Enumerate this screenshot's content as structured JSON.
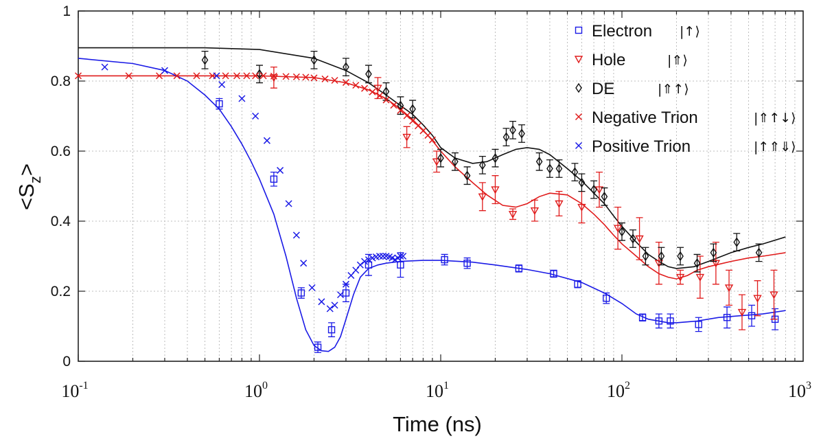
{
  "chart_data": {
    "type": "scatter",
    "xscale": "log",
    "xlim": [
      0.1,
      1000
    ],
    "ylim": [
      0,
      1
    ],
    "xlabel": "Time (ns)",
    "ylabel": {
      "base": "<S",
      "sub": "z",
      "close": ">"
    },
    "yticks": [
      "0",
      "0.2",
      "0.4",
      "0.6",
      "0.8",
      "1"
    ],
    "xticks": [
      {
        "base": "10",
        "exp": "-1"
      },
      {
        "base": "10",
        "exp": "0"
      },
      {
        "base": "10",
        "exp": "1"
      },
      {
        "base": "10",
        "exp": "2"
      },
      {
        "base": "10",
        "exp": "3"
      }
    ],
    "grid": true,
    "legend_position": "top-right",
    "series": [
      {
        "name": "Electron",
        "ket": "|↑⟩",
        "color": "#1a1ae6",
        "marker": "square",
        "x": [
          0.6,
          1.2,
          1.7,
          2.1,
          2.5,
          3.0,
          4.0,
          6.0,
          10.5,
          14.0,
          27.0,
          42.0,
          57.0,
          82.0,
          130.0,
          160.0,
          185.0,
          265.0,
          380.0,
          520.0,
          700.0
        ],
        "y": [
          0.735,
          0.52,
          0.195,
          0.04,
          0.09,
          0.195,
          0.275,
          0.275,
          0.29,
          0.28,
          0.265,
          0.25,
          0.22,
          0.18,
          0.125,
          0.115,
          0.115,
          0.105,
          0.125,
          0.13,
          0.12
        ],
        "err": [
          0.015,
          0.02,
          0.015,
          0.015,
          0.02,
          0.025,
          0.03,
          0.035,
          0.015,
          0.015,
          0.01,
          0.01,
          0.01,
          0.015,
          0.01,
          0.02,
          0.02,
          0.02,
          0.03,
          0.03,
          0.03
        ]
      },
      {
        "name": "Hole",
        "ket": "|⇑⟩",
        "color": "#e01b1b",
        "marker": "triangle-down",
        "x": [
          1.2,
          4.5,
          6.5,
          9.5,
          17.0,
          20.0,
          25.0,
          33.0,
          45.0,
          60.0,
          75.0,
          95.0,
          125.0,
          160.0,
          210.0,
          270.0,
          330.0,
          390.0,
          460.0,
          560.0,
          690.0
        ],
        "y": [
          0.81,
          0.78,
          0.64,
          0.57,
          0.47,
          0.49,
          0.42,
          0.43,
          0.45,
          0.44,
          0.49,
          0.38,
          0.35,
          0.28,
          0.24,
          0.24,
          0.28,
          0.21,
          0.14,
          0.18,
          0.19
        ],
        "err": [
          0.03,
          0.03,
          0.03,
          0.03,
          0.04,
          0.04,
          0.015,
          0.03,
          0.035,
          0.045,
          0.05,
          0.06,
          0.06,
          0.06,
          0.02,
          0.06,
          0.06,
          0.05,
          0.05,
          0.05,
          0.07
        ]
      },
      {
        "name": "DE",
        "ket": "|⇑↑⟩",
        "color": "#111111",
        "marker": "diamond",
        "x": [
          0.5,
          1.0,
          2.0,
          3.0,
          4.0,
          5.0,
          6.0,
          7.0,
          10.0,
          12.0,
          14.0,
          17.0,
          20.0,
          23.0,
          25.0,
          28.0,
          35.0,
          40.0,
          45.0,
          55.0,
          60.0,
          70.0,
          80.0,
          100.0,
          115.0,
          135.0,
          165.0,
          210.0,
          260.0,
          320.0,
          430.0,
          570.0
        ],
        "y": [
          0.86,
          0.82,
          0.86,
          0.84,
          0.82,
          0.77,
          0.73,
          0.72,
          0.58,
          0.57,
          0.53,
          0.56,
          0.58,
          0.64,
          0.66,
          0.65,
          0.57,
          0.55,
          0.55,
          0.54,
          0.51,
          0.49,
          0.47,
          0.37,
          0.35,
          0.3,
          0.3,
          0.3,
          0.28,
          0.31,
          0.34,
          0.31
        ],
        "err": [
          0.025,
          0.025,
          0.025,
          0.025,
          0.025,
          0.025,
          0.025,
          0.025,
          0.025,
          0.025,
          0.025,
          0.025,
          0.025,
          0.025,
          0.025,
          0.025,
          0.025,
          0.025,
          0.025,
          0.025,
          0.025,
          0.025,
          0.025,
          0.025,
          0.025,
          0.025,
          0.025,
          0.025,
          0.025,
          0.025,
          0.025,
          0.025
        ]
      },
      {
        "name": "Negative Trion",
        "ket": "|⇑↑↓⟩",
        "color": "#e01b1b",
        "marker": "x",
        "x": [
          0.1,
          0.19,
          0.28,
          0.35,
          0.45,
          0.55,
          0.65,
          0.75,
          0.85,
          0.95,
          1.05,
          1.2,
          1.4,
          1.6,
          1.8,
          2.0,
          2.3,
          2.6,
          3.0,
          3.4,
          3.8,
          4.2,
          4.6,
          5.0,
          5.5,
          6.0,
          6.5,
          7.0,
          7.5,
          8.0,
          8.5,
          9.0
        ],
        "y": [
          0.815,
          0.815,
          0.815,
          0.815,
          0.815,
          0.815,
          0.815,
          0.815,
          0.815,
          0.815,
          0.815,
          0.814,
          0.813,
          0.812,
          0.811,
          0.809,
          0.806,
          0.802,
          0.796,
          0.788,
          0.779,
          0.769,
          0.758,
          0.746,
          0.731,
          0.716,
          0.701,
          0.686,
          0.672,
          0.658,
          0.645,
          0.632
        ]
      },
      {
        "name": "Positive Trion",
        "ket": "|↑⇑⇓⟩",
        "color": "#1a1ae6",
        "marker": "x",
        "x": [
          0.14,
          0.3,
          0.58,
          0.62,
          0.8,
          0.95,
          1.1,
          1.3,
          1.45,
          1.6,
          1.75,
          1.95,
          2.2,
          2.45,
          2.6,
          2.8,
          3.0,
          3.2,
          3.4,
          3.6,
          3.8,
          4.0,
          4.2,
          4.4,
          4.6,
          4.8,
          5.0,
          5.2,
          5.4,
          5.6,
          5.8,
          6.0,
          6.2
        ],
        "y": [
          0.84,
          0.83,
          0.815,
          0.79,
          0.75,
          0.7,
          0.63,
          0.545,
          0.45,
          0.36,
          0.28,
          0.21,
          0.17,
          0.15,
          0.16,
          0.19,
          0.22,
          0.245,
          0.26,
          0.275,
          0.285,
          0.29,
          0.295,
          0.298,
          0.3,
          0.3,
          0.3,
          0.298,
          0.295,
          0.29,
          0.295,
          0.3,
          0.3
        ]
      }
    ],
    "fits": [
      {
        "name": "DE fit",
        "color": "#111111",
        "x": [
          0.1,
          0.5,
          1.0,
          2.0,
          3.0,
          4.0,
          5.0,
          6.0,
          7.0,
          8.0,
          9.0,
          10.0,
          12.0,
          15.0,
          18.0,
          22.0,
          26.0,
          30.0,
          35.0,
          40.0,
          50.0,
          60.0,
          70.0,
          80.0,
          90.0,
          100.0,
          120.0,
          140.0,
          160.0,
          180.0,
          200.0,
          250.0,
          300.0,
          400.0,
          500.0,
          600.0,
          800.0
        ],
        "y": [
          0.895,
          0.895,
          0.89,
          0.865,
          0.83,
          0.795,
          0.76,
          0.73,
          0.705,
          0.675,
          0.645,
          0.61,
          0.58,
          0.565,
          0.57,
          0.59,
          0.605,
          0.61,
          0.605,
          0.59,
          0.55,
          0.515,
          0.48,
          0.45,
          0.415,
          0.385,
          0.34,
          0.305,
          0.285,
          0.27,
          0.265,
          0.27,
          0.285,
          0.31,
          0.325,
          0.335,
          0.355
        ]
      },
      {
        "name": "Hole fit",
        "color": "#e01b1b",
        "x": [
          0.1,
          1.0,
          2.0,
          3.0,
          4.0,
          5.0,
          6.0,
          7.0,
          8.0,
          9.0,
          10.0,
          12.0,
          15.0,
          18.0,
          22.0,
          26.0,
          30.0,
          35.0,
          40.0,
          50.0,
          60.0,
          70.0,
          80.0,
          90.0,
          100.0,
          120.0,
          140.0,
          160.0,
          180.0,
          200.0,
          230.0,
          260.0,
          300.0,
          400.0,
          500.0,
          600.0,
          800.0
        ],
        "y": [
          0.815,
          0.815,
          0.81,
          0.795,
          0.775,
          0.75,
          0.72,
          0.69,
          0.66,
          0.63,
          0.6,
          0.555,
          0.51,
          0.475,
          0.445,
          0.44,
          0.45,
          0.47,
          0.48,
          0.475,
          0.45,
          0.42,
          0.39,
          0.36,
          0.335,
          0.3,
          0.27,
          0.25,
          0.24,
          0.235,
          0.245,
          0.26,
          0.27,
          0.285,
          0.295,
          0.3,
          0.31
        ]
      },
      {
        "name": "Electron fit",
        "color": "#1a1ae6",
        "x": [
          0.1,
          0.2,
          0.3,
          0.4,
          0.5,
          0.6,
          0.7,
          0.8,
          0.9,
          1.0,
          1.2,
          1.4,
          1.6,
          1.8,
          2.0,
          2.2,
          2.4,
          2.6,
          2.8,
          3.0,
          3.3,
          3.6,
          4.0,
          4.5,
          5.0,
          6.0,
          8.0,
          10.0,
          15.0,
          20.0,
          30.0,
          40.0,
          60.0,
          80.0,
          100.0,
          120.0,
          140.0,
          160.0,
          180.0,
          200.0,
          260.0,
          340.0,
          450.0,
          600.0,
          800.0
        ],
        "y": [
          0.865,
          0.85,
          0.83,
          0.8,
          0.76,
          0.72,
          0.67,
          0.62,
          0.57,
          0.52,
          0.42,
          0.3,
          0.18,
          0.09,
          0.045,
          0.03,
          0.028,
          0.04,
          0.07,
          0.12,
          0.19,
          0.24,
          0.265,
          0.275,
          0.28,
          0.285,
          0.288,
          0.288,
          0.283,
          0.275,
          0.262,
          0.25,
          0.225,
          0.195,
          0.165,
          0.135,
          0.12,
          0.115,
          0.11,
          0.11,
          0.115,
          0.125,
          0.13,
          0.135,
          0.145
        ]
      }
    ]
  }
}
